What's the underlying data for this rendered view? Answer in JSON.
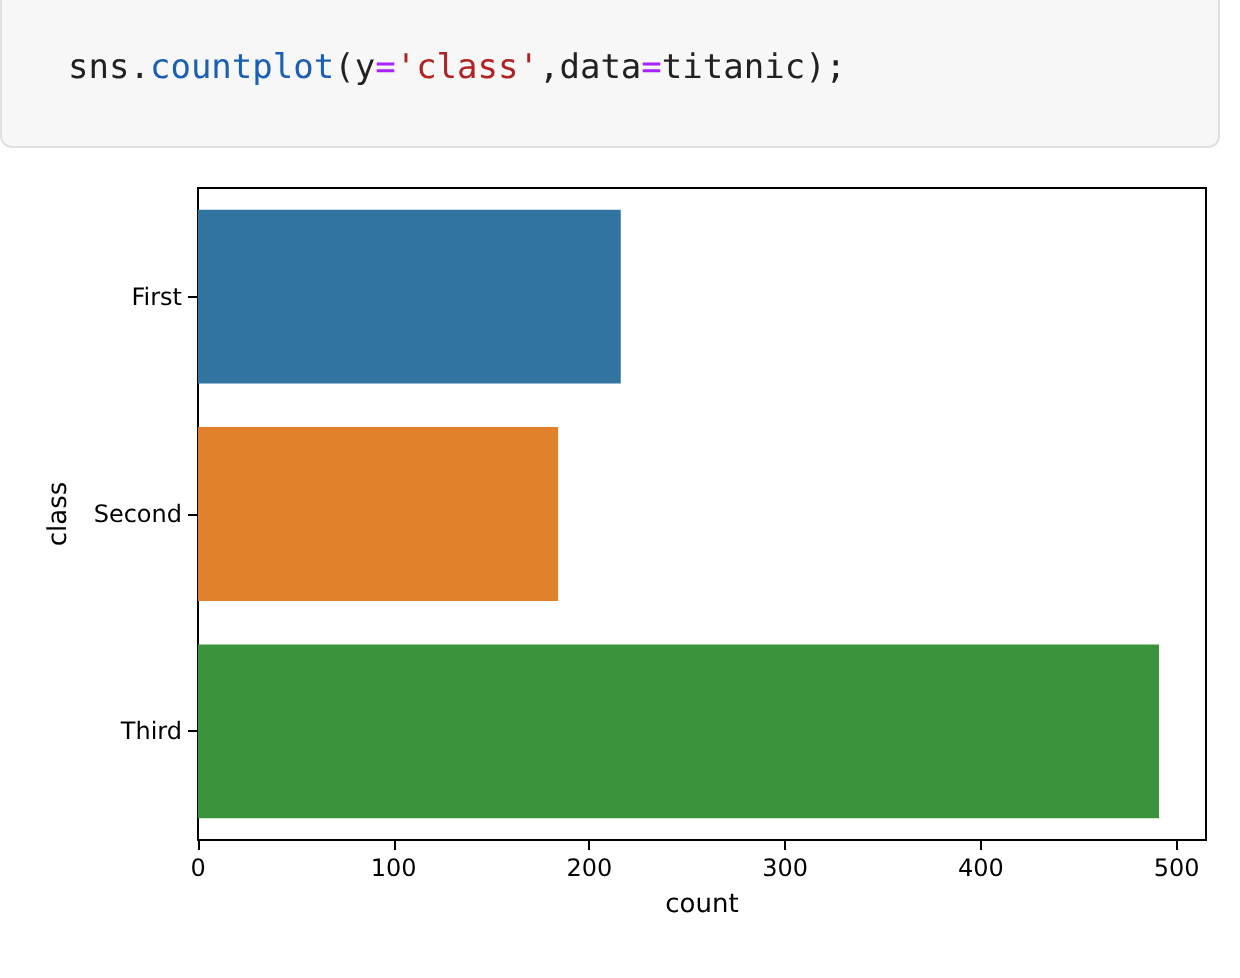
{
  "chart_data": {
    "type": "bar",
    "orientation": "horizontal",
    "annotations": [
      "sns.countplot(y='class',data=titanic);"
    ],
    "categories": [
      "First",
      "Second",
      "Third"
    ],
    "values": [
      216,
      184,
      491
    ],
    "colors": [
      "#3274a1",
      "#e1812c",
      "#3a923a"
    ],
    "xlabel": "count",
    "ylabel": "class",
    "xlim": [
      0,
      515
    ],
    "xticks": [
      0,
      100,
      200,
      300,
      400,
      500
    ],
    "grid": false
  }
}
